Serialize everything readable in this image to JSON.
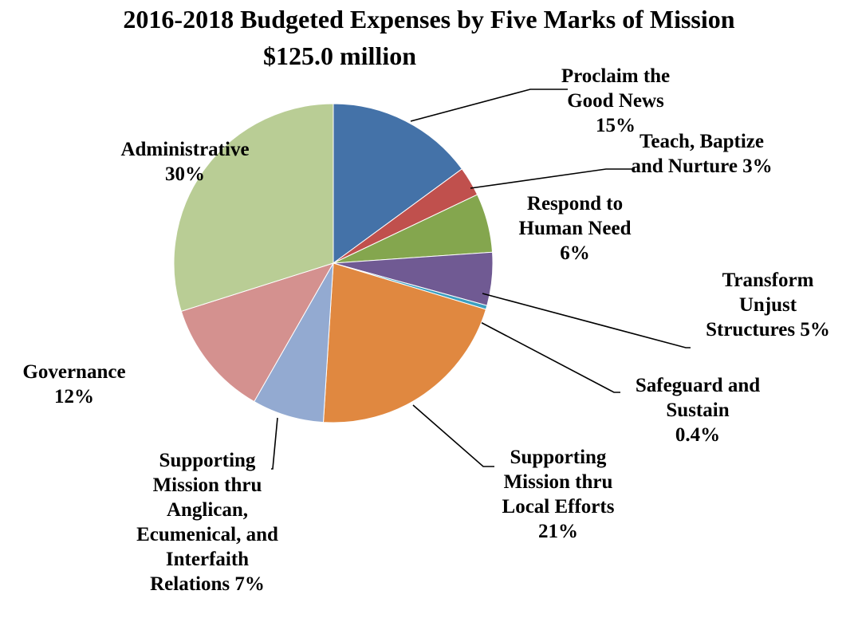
{
  "chart_data": {
    "type": "pie",
    "title": "2016-2018 Budgeted Expenses by Five Marks of Mission",
    "subtitle": "$125.0 million",
    "slices": [
      {
        "lines": [
          "Proclaim the",
          "Good News"
        ],
        "pct_label": "15%",
        "value": 15,
        "color": "#4472a8"
      },
      {
        "lines": [
          "Teach, Baptize",
          "and Nurture"
        ],
        "pct_label": "3%",
        "value": 3,
        "color": "#c0504d"
      },
      {
        "lines": [
          "Respond to",
          "Human Need"
        ],
        "pct_label": "6%",
        "value": 6,
        "color": "#84a64e"
      },
      {
        "lines": [
          "Transform",
          "Unjust",
          "Structures"
        ],
        "pct_label": "5%",
        "value": 5.4,
        "color": "#705a93"
      },
      {
        "lines": [
          "Safeguard and",
          "Sustain"
        ],
        "pct_label": "0.4%",
        "value": 0.4,
        "color": "#3b9fc0"
      },
      {
        "lines": [
          "Supporting",
          "Mission thru",
          "Local Efforts"
        ],
        "pct_label": "21%",
        "value": 21.4,
        "color": "#e08840"
      },
      {
        "lines": [
          "Supporting",
          "Mission thru",
          "Anglican,",
          "Ecumenical, and",
          "Interfaith",
          "Relations"
        ],
        "pct_label": "7%",
        "value": 7.3,
        "color": "#93aad1"
      },
      {
        "lines": [
          "Governance"
        ],
        "pct_label": "12%",
        "value": 11.9,
        "color": "#d4918f"
      },
      {
        "lines": [
          "Administrative"
        ],
        "pct_label": "30%",
        "value": 30,
        "color": "#b9cd95"
      }
    ]
  }
}
